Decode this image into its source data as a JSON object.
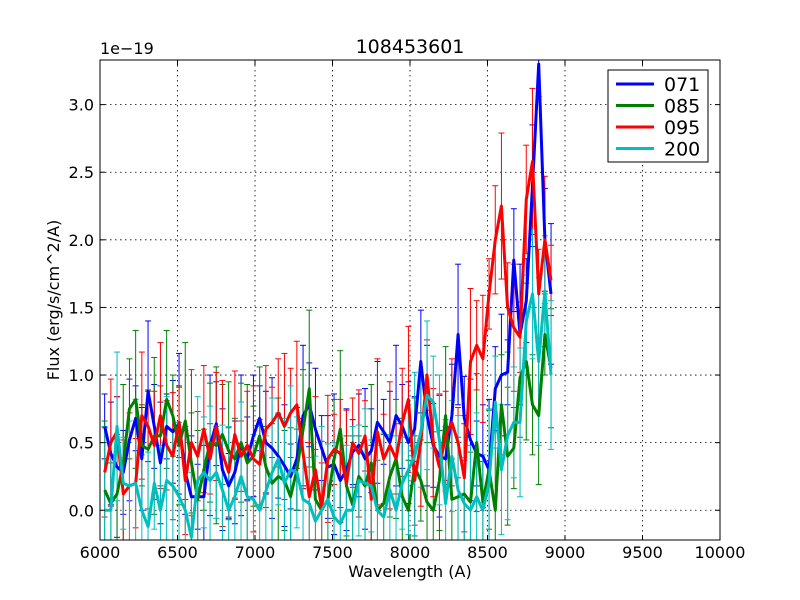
{
  "chart_data": {
    "type": "line",
    "title": "108453601",
    "xlabel": "Wavelength (A)",
    "ylabel": "Flux (erg/s/cm^2/A)",
    "y_offset_label": "1e−19",
    "xlim": [
      6000,
      10000
    ],
    "ylim": [
      -0.22,
      3.33
    ],
    "grid": true,
    "x_ticks": [
      6000,
      6500,
      7000,
      7500,
      8000,
      8500,
      9000,
      9500,
      10000
    ],
    "y_ticks": [
      0.0,
      0.5,
      1.0,
      1.5,
      2.0,
      2.5,
      3.0
    ],
    "x_tick_labels": [
      "6000",
      "6500",
      "7000",
      "7500",
      "8000",
      "8500",
      "9000",
      "9500",
      "10000"
    ],
    "y_tick_labels": [
      "0.0",
      "0.5",
      "1.0",
      "1.5",
      "2.0",
      "2.5",
      "3.0"
    ],
    "legend_position": "top-right",
    "wavelength_start": 6030,
    "wavelength_step": 40,
    "series": [
      {
        "name": "071",
        "color": "#0000ff",
        "values": [
          0.62,
          0.42,
          0.32,
          0.28,
          0.52,
          0.68,
          0.38,
          0.88,
          0.62,
          0.35,
          0.62,
          0.58,
          0.64,
          0.28,
          0.1,
          0.1,
          0.1,
          0.48,
          0.64,
          0.3,
          0.18,
          0.28,
          0.48,
          0.38,
          0.55,
          0.68,
          0.5,
          0.46,
          0.4,
          0.33,
          0.25,
          0.38,
          0.7,
          0.78,
          0.6,
          0.46,
          0.32,
          0.34,
          0.22,
          0.3,
          0.43,
          0.48,
          0.38,
          0.44,
          0.65,
          0.58,
          0.5,
          0.7,
          0.62,
          0.5,
          0.6,
          1.1,
          0.7,
          0.48,
          0.4,
          0.38,
          0.7,
          1.3,
          0.68,
          0.52,
          0.42,
          0.4,
          0.3,
          0.9,
          1.0,
          1.02,
          1.85,
          1.3,
          1.55,
          2.4,
          3.3,
          2.0,
          1.6
        ]
      },
      {
        "name": "085",
        "color": "#008000",
        "values": [
          0.15,
          0.05,
          0.12,
          0.35,
          0.75,
          0.82,
          0.48,
          0.45,
          0.55,
          0.55,
          0.82,
          0.7,
          0.48,
          0.66,
          0.35,
          0.08,
          0.3,
          0.5,
          0.48,
          0.56,
          0.44,
          0.38,
          0.5,
          0.35,
          0.4,
          0.55,
          0.32,
          0.2,
          0.25,
          0.22,
          0.1,
          0.3,
          0.6,
          0.9,
          0.08,
          0.0,
          0.08,
          0.38,
          0.6,
          0.18,
          0.04,
          0.25,
          0.18,
          0.35,
          0.0,
          0.05,
          0.25,
          0.38,
          0.1,
          0.0,
          0.32,
          0.22,
          0.06,
          0.0,
          0.22,
          0.7,
          0.08,
          0.1,
          0.12,
          0.06,
          0.5,
          0.06,
          0.3,
          0.0,
          0.78,
          0.4,
          0.46,
          0.98,
          1.1,
          0.78,
          0.7,
          1.3,
          1.05
        ]
      },
      {
        "name": "095",
        "color": "#ff0000",
        "values": [
          0.28,
          0.5,
          0.58,
          0.12,
          0.18,
          0.2,
          0.7,
          0.62,
          0.48,
          0.7,
          0.48,
          0.4,
          0.65,
          0.22,
          0.5,
          0.4,
          0.6,
          0.38,
          0.62,
          0.42,
          0.28,
          0.56,
          0.4,
          0.48,
          0.38,
          0.34,
          0.6,
          0.65,
          0.72,
          0.62,
          0.72,
          0.78,
          0.42,
          0.1,
          0.3,
          0.02,
          0.38,
          0.45,
          0.42,
          0.2,
          0.5,
          0.42,
          0.55,
          0.08,
          0.58,
          0.38,
          0.48,
          0.38,
          0.65,
          0.82,
          0.22,
          0.5,
          1.0,
          0.5,
          0.32,
          0.55,
          0.65,
          0.5,
          0.24,
          1.1,
          1.22,
          1.12,
          1.6,
          2.0,
          2.25,
          1.5,
          1.35,
          1.28,
          2.3,
          2.58,
          1.6,
          2.0,
          1.7
        ]
      },
      {
        "name": "200",
        "color": "#00bfbf",
        "values": [
          0.0,
          0.0,
          0.62,
          0.2,
          0.18,
          0.2,
          0.0,
          -0.12,
          0.2,
          0.0,
          0.22,
          0.18,
          0.1,
          0.0,
          -0.2,
          0.22,
          0.28,
          0.22,
          0.28,
          0.15,
          0.0,
          0.1,
          0.25,
          0.1,
          0.08,
          0.0,
          0.14,
          0.28,
          0.38,
          0.2,
          0.3,
          0.28,
          0.08,
          0.05,
          -0.08,
          0.0,
          0.08,
          -0.05,
          -0.1,
          0.0,
          0.0,
          0.22,
          0.2,
          0.18,
          0.0,
          -0.05,
          0.15,
          0.0,
          0.2,
          0.3,
          0.4,
          0.58,
          0.85,
          0.8,
          0.52,
          0.05,
          0.4,
          0.15,
          0.05,
          0.0,
          0.1,
          0.0,
          0.2,
          0.8,
          0.3,
          0.55,
          0.65,
          0.65,
          1.4,
          1.6,
          1.1,
          1.62,
          1.0
        ]
      }
    ]
  }
}
